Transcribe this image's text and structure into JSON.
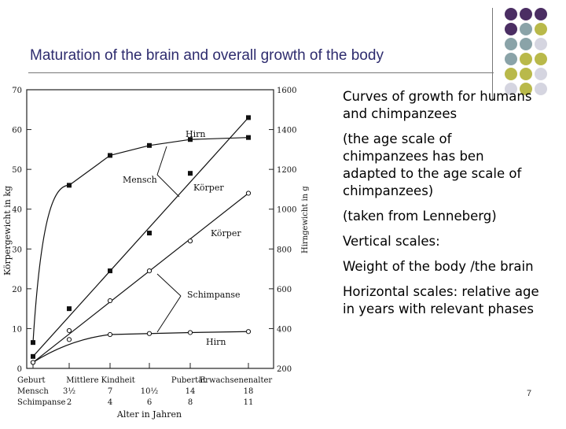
{
  "slide": {
    "title": "Maturation of the brain and overall growth of the body",
    "page_number": "7",
    "notes": [
      "Curves of growth for humans and chimpanzees",
      "(the age scale of chimpanzees has ben adapted to the age scale of chimpanzees)",
      "(taken from Lenneberg)",
      "Vertical scales:",
      "Weight of the body /the brain",
      "Horizontal scales: relative age in years with relevant phases"
    ],
    "decor_colors": [
      "#4b2e63",
      "#8aa3a8",
      "#b9b94a",
      "#d5d5e0"
    ]
  },
  "chart_data": {
    "type": "line",
    "left_axis": {
      "label": "Körpergewicht in kg",
      "ticks": [
        0,
        10,
        20,
        30,
        40,
        50,
        60,
        70
      ],
      "range": [
        0,
        70
      ]
    },
    "right_axis": {
      "label": "Hirngewicht in g",
      "ticks": [
        200,
        400,
        600,
        800,
        1000,
        1200,
        1400,
        1600
      ],
      "range": [
        200,
        1600
      ]
    },
    "x_axis": {
      "label": "Alter in Jahren",
      "positions": [
        0,
        1,
        2,
        3,
        4,
        5
      ],
      "rows": [
        {
          "name": "",
          "labels": [
            "Geburt",
            "Mittlere Kindheit",
            "",
            "Pubertät",
            "Erwachsenenalter"
          ],
          "at": [
            0,
            1.5,
            2,
            3.5,
            5
          ]
        },
        {
          "name": "Mensch",
          "labels": [
            "3½",
            "7",
            "10½",
            "14",
            "18"
          ],
          "at": [
            1,
            2,
            3,
            4,
            5
          ]
        },
        {
          "name": "Schimpanse",
          "labels": [
            "2",
            "4",
            "6",
            "8",
            "11"
          ],
          "at": [
            1,
            2,
            3,
            4,
            5
          ]
        }
      ]
    },
    "series": [
      {
        "name": "Hirn",
        "group": "Mensch",
        "axis": "right",
        "marker": "filled-square",
        "x": [
          0,
          1,
          2,
          3,
          4,
          5
        ],
        "y": [
          330,
          1120,
          1270,
          1320,
          1350,
          1360
        ]
      },
      {
        "name": "Körper",
        "group": "Mensch",
        "axis": "left",
        "marker": "filled-square",
        "x": [
          0,
          1,
          2,
          3,
          4,
          5
        ],
        "y": [
          3,
          15,
          24.5,
          34,
          49,
          63
        ]
      },
      {
        "name": "Körper",
        "group": "Schimpanse",
        "axis": "left",
        "marker": "open-circle",
        "x": [
          0,
          1,
          2,
          3,
          4,
          5
        ],
        "y": [
          1.5,
          9.5,
          17,
          24.5,
          32,
          44
        ]
      },
      {
        "name": "Hirn",
        "group": "Schimpanse",
        "axis": "right",
        "marker": "open-circle",
        "x": [
          0,
          1,
          2,
          3,
          4,
          5
        ],
        "y": [
          230,
          345,
          370,
          375,
          380,
          385
        ]
      }
    ],
    "annotations": [
      {
        "text": "Hirn",
        "points_to": "Mensch Hirn"
      },
      {
        "text": "Mensch",
        "points_to": "Mensch"
      },
      {
        "text": "Körper",
        "points_to": "Mensch Körper"
      },
      {
        "text": "Körper",
        "points_to": "Schimpanse Körper"
      },
      {
        "text": "Schimpanse",
        "points_to": "Schimpanse"
      },
      {
        "text": "Hirn",
        "points_to": "Schimpanse Hirn"
      }
    ]
  }
}
